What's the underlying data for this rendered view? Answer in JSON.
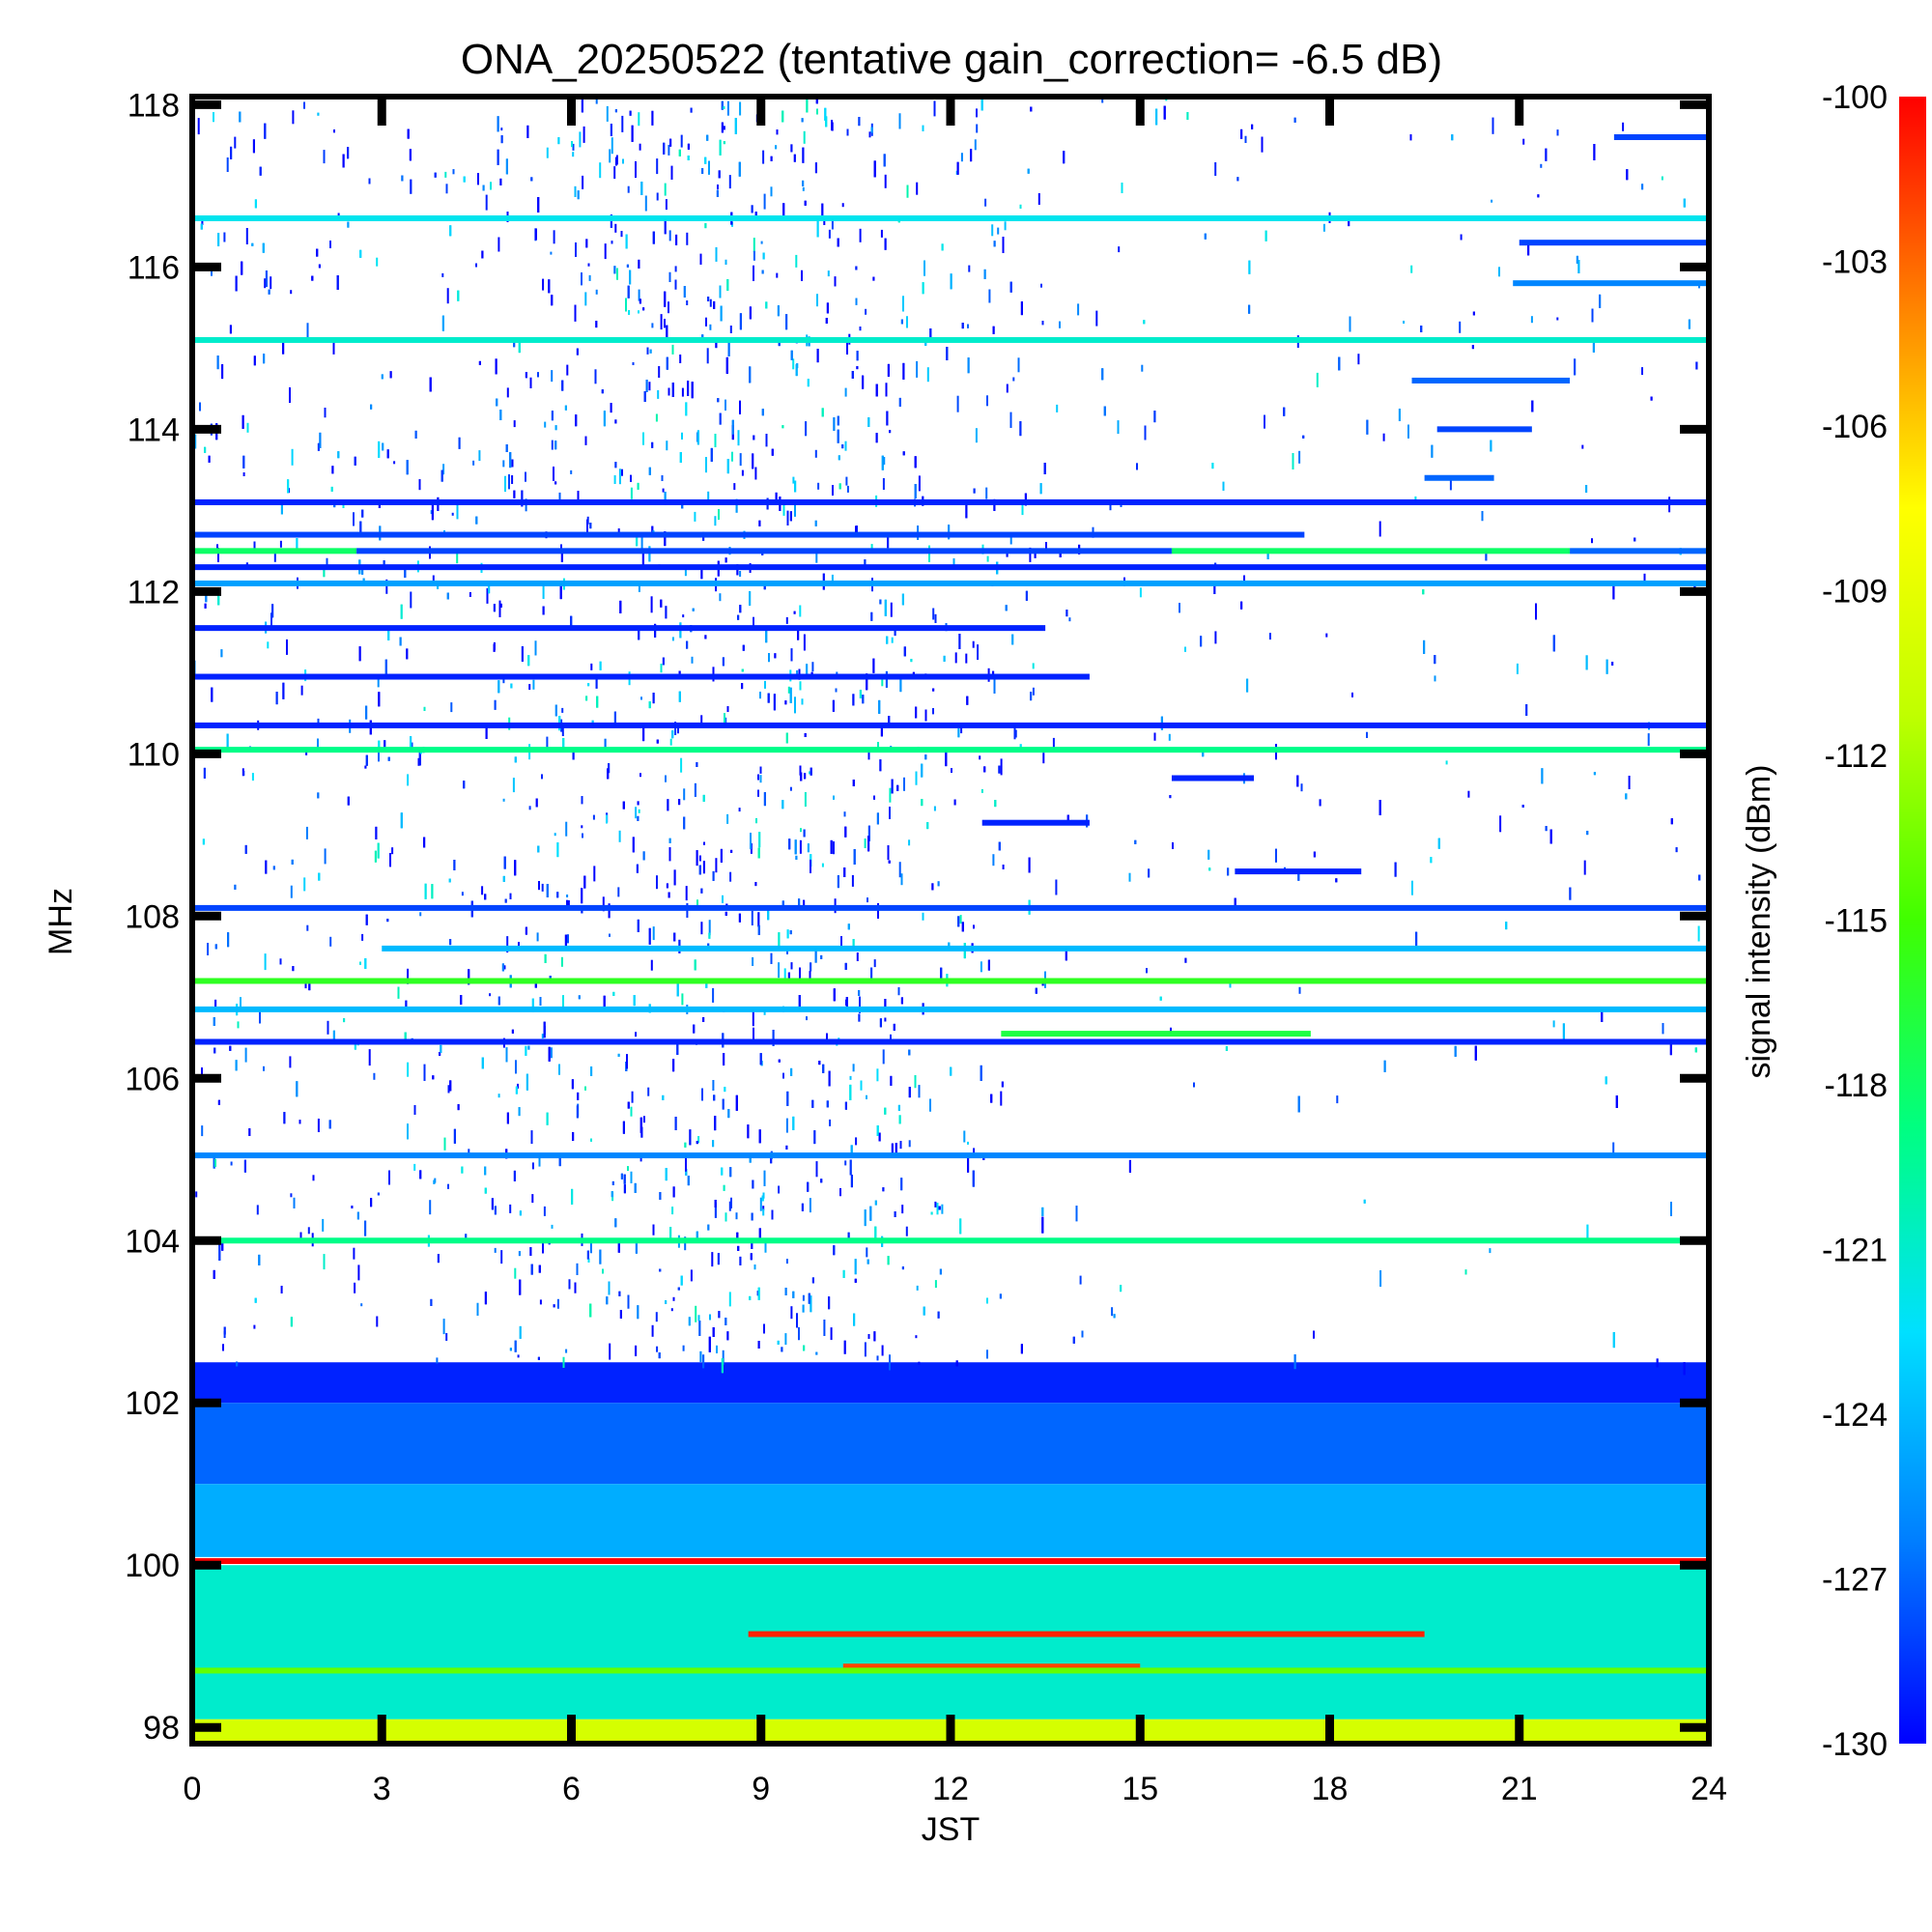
{
  "chart_data": {
    "type": "heatmap",
    "title": "ONA_20250522 (tentative gain_correction= -6.5 dB)",
    "xlabel": "JST",
    "ylabel": "MHz",
    "colorbar_label": "signal intensity (dBm)",
    "xlim": [
      0,
      24
    ],
    "ylim": [
      97.8,
      118.1
    ],
    "x_ticks": [
      "0",
      "3",
      "6",
      "9",
      "12",
      "15",
      "18",
      "21",
      "24"
    ],
    "y_ticks": [
      "98",
      "100",
      "102",
      "104",
      "106",
      "108",
      "110",
      "112",
      "114",
      "116",
      "118"
    ],
    "colorbar_ticks": [
      "-100",
      "-103",
      "-106",
      "-109",
      "-112",
      "-115",
      "-118",
      "-121",
      "-124",
      "-127",
      "-130"
    ],
    "colorbar_range": [
      -130,
      -100
    ],
    "colormap": [
      "#0000ff",
      "#0080ff",
      "#00e0ff",
      "#00ff80",
      "#40ff00",
      "#c0ff00",
      "#ffff00",
      "#ff8000",
      "#ff0000"
    ],
    "grid": false,
    "noise_floor_bands": [
      {
        "f_from": 102.0,
        "f_to": 102.5,
        "dbm": -129
      },
      {
        "f_from": 101.0,
        "f_to": 102.0,
        "dbm": -127
      },
      {
        "f_from": 100.1,
        "f_to": 101.0,
        "dbm": -124.5
      },
      {
        "f_from": 98.1,
        "f_to": 100.0,
        "dbm": -121
      },
      {
        "f_from": 97.8,
        "f_to": 98.1,
        "dbm": -110
      }
    ],
    "signals": [
      {
        "freq": 116.6,
        "t_start": 0,
        "t_end": 24,
        "dbm": -122
      },
      {
        "freq": 115.1,
        "t_start": 0,
        "t_end": 24,
        "dbm": -121
      },
      {
        "freq": 117.6,
        "t_start": 22.5,
        "t_end": 24,
        "dbm": -128
      },
      {
        "freq": 116.3,
        "t_start": 21,
        "t_end": 24,
        "dbm": -128
      },
      {
        "freq": 115.8,
        "t_start": 20.9,
        "t_end": 24,
        "dbm": -126
      },
      {
        "freq": 114.6,
        "t_start": 19.3,
        "t_end": 21.8,
        "dbm": -127
      },
      {
        "freq": 114.0,
        "t_start": 19.7,
        "t_end": 21.2,
        "dbm": -128
      },
      {
        "freq": 113.4,
        "t_start": 19.5,
        "t_end": 20.6,
        "dbm": -127
      },
      {
        "freq": 113.1,
        "t_start": 0,
        "t_end": 24,
        "dbm": -129
      },
      {
        "freq": 112.7,
        "t_start": 0,
        "t_end": 17.6,
        "dbm": -128
      },
      {
        "freq": 112.5,
        "t_start": 0,
        "t_end": 2.6,
        "dbm": -118
      },
      {
        "freq": 112.5,
        "t_start": 2.6,
        "t_end": 15.5,
        "dbm": -128
      },
      {
        "freq": 112.5,
        "t_start": 15.5,
        "t_end": 21.8,
        "dbm": -118
      },
      {
        "freq": 112.5,
        "t_start": 21.8,
        "t_end": 24,
        "dbm": -127
      },
      {
        "freq": 112.3,
        "t_start": 0,
        "t_end": 24,
        "dbm": -129
      },
      {
        "freq": 112.1,
        "t_start": 0,
        "t_end": 24,
        "dbm": -125
      },
      {
        "freq": 111.55,
        "t_start": 0,
        "t_end": 13.5,
        "dbm": -129
      },
      {
        "freq": 110.95,
        "t_start": 0,
        "t_end": 14.2,
        "dbm": -129
      },
      {
        "freq": 110.35,
        "t_start": 0,
        "t_end": 24,
        "dbm": -129
      },
      {
        "freq": 110.05,
        "t_start": 0,
        "t_end": 24,
        "dbm": -119
      },
      {
        "freq": 109.7,
        "t_start": 15.5,
        "t_end": 16.8,
        "dbm": -129
      },
      {
        "freq": 109.15,
        "t_start": 12.5,
        "t_end": 14.2,
        "dbm": -129
      },
      {
        "freq": 108.55,
        "t_start": 16.5,
        "t_end": 18.5,
        "dbm": -129
      },
      {
        "freq": 108.1,
        "t_start": 0,
        "t_end": 24,
        "dbm": -128
      },
      {
        "freq": 107.6,
        "t_start": 3,
        "t_end": 24,
        "dbm": -124
      },
      {
        "freq": 107.2,
        "t_start": 0,
        "t_end": 24,
        "dbm": -116
      },
      {
        "freq": 106.85,
        "t_start": 0,
        "t_end": 24,
        "dbm": -124
      },
      {
        "freq": 106.55,
        "t_start": 12.8,
        "t_end": 17.7,
        "dbm": -117
      },
      {
        "freq": 106.45,
        "t_start": 0,
        "t_end": 24,
        "dbm": -129
      },
      {
        "freq": 105.05,
        "t_start": 0,
        "t_end": 24,
        "dbm": -126
      },
      {
        "freq": 104.0,
        "t_start": 0,
        "t_end": 24,
        "dbm": -119
      },
      {
        "freq": 100.05,
        "t_start": 0,
        "t_end": 24,
        "dbm": -100
      },
      {
        "freq": 99.15,
        "t_start": 8.8,
        "t_end": 19.5,
        "dbm": -101
      },
      {
        "freq": 98.75,
        "t_start": 10.3,
        "t_end": 15.0,
        "dbm": -102
      },
      {
        "freq": 98.7,
        "t_start": 0,
        "t_end": 24,
        "dbm": -114
      }
    ]
  }
}
